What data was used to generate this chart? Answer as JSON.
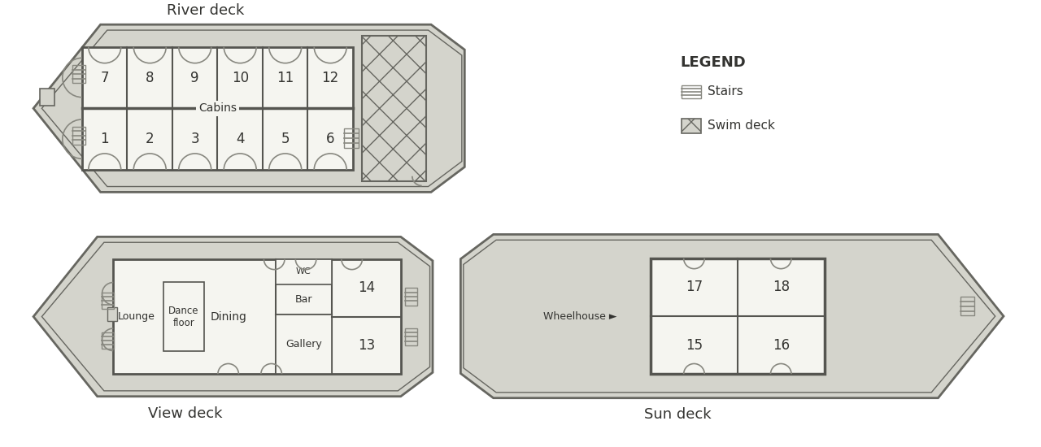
{
  "bg_color": "#ffffff",
  "deck_fill": "#d4d4cc",
  "deck_stroke": "#666660",
  "cabin_fill": "#f5f5f0",
  "cabin_stroke": "#555550",
  "text_color": "#333330",
  "door_color": "#888880",
  "river_deck_label": "River deck",
  "view_deck_label": "View deck",
  "sun_deck_label": "Sun deck",
  "river_cabins_top": [
    7,
    8,
    9,
    10,
    11,
    12
  ],
  "river_cabins_bot": [
    1,
    2,
    3,
    4,
    5,
    6
  ],
  "cabins_label": "Cabins",
  "legend_title": "LEGEND",
  "legend_stairs": "Stairs",
  "legend_swim": "Swim deck",
  "wheelhouse_label": "Wheelhouse ►",
  "sun_cabins_tl": 17,
  "sun_cabins_tr": 18,
  "sun_cabins_bl": 15,
  "sun_cabins_br": 16,
  "lounge_label": "Lounge",
  "dancefloor_label": "Dance\nfloor",
  "dining_label": "Dining",
  "wc_label": "WC",
  "bar_label": "Bar",
  "gallery_label": "Gallery",
  "cabin13_label": "13",
  "cabin14_label": "14"
}
